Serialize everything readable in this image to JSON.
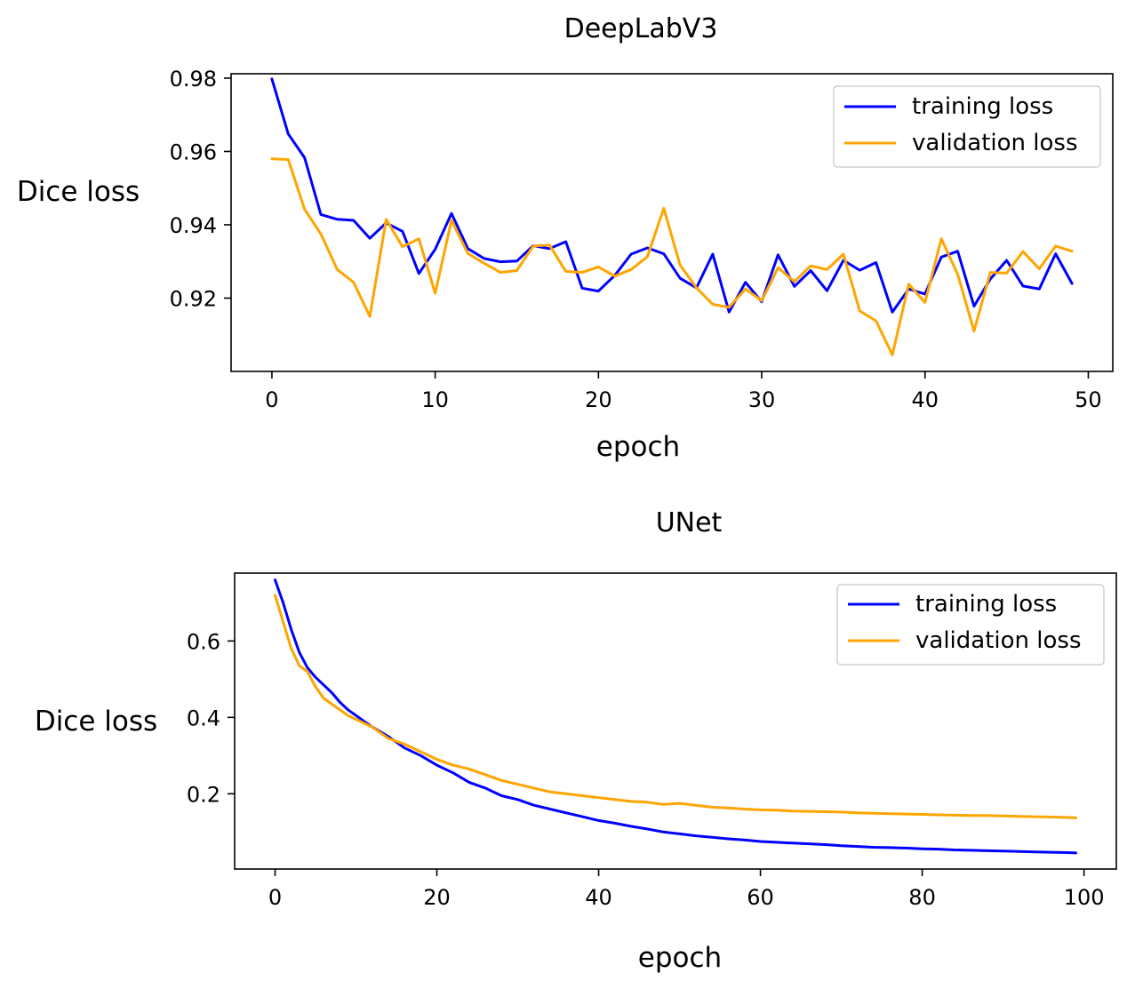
{
  "chart_data": [
    {
      "type": "line",
      "title": "DeepLabV3",
      "xlabel": "epoch",
      "ylabel": "Dice loss",
      "xlim": [
        -2.5,
        51.5
      ],
      "ylim": [
        0.9,
        0.9812
      ],
      "xticks": [
        0,
        10,
        20,
        30,
        40,
        50
      ],
      "yticks": [
        0.92,
        0.94,
        0.96,
        0.98
      ],
      "ytick_labels": [
        "0.92",
        "0.94",
        "0.96",
        "0.98"
      ],
      "grid": false,
      "legend_position": "top-right",
      "series": [
        {
          "name": "training loss",
          "color": "#0000ff",
          "x": [
            0,
            1,
            2,
            3,
            4,
            5,
            6,
            7,
            8,
            9,
            10,
            11,
            12,
            13,
            14,
            15,
            16,
            17,
            18,
            19,
            20,
            21,
            22,
            23,
            24,
            25,
            26,
            27,
            28,
            29,
            30,
            31,
            32,
            33,
            34,
            35,
            36,
            37,
            38,
            39,
            40,
            41,
            42,
            43,
            44,
            45,
            46,
            47,
            48,
            49
          ],
          "values": [
            0.9798,
            0.9648,
            0.9583,
            0.9428,
            0.9415,
            0.9412,
            0.9363,
            0.9405,
            0.9382,
            0.9267,
            0.9333,
            0.9431,
            0.9335,
            0.9308,
            0.9299,
            0.9301,
            0.9343,
            0.9335,
            0.9354,
            0.9227,
            0.9219,
            0.9262,
            0.932,
            0.9337,
            0.9321,
            0.9254,
            0.9228,
            0.932,
            0.9162,
            0.9243,
            0.919,
            0.9318,
            0.9232,
            0.9275,
            0.922,
            0.9303,
            0.9276,
            0.9297,
            0.9162,
            0.9225,
            0.9211,
            0.9312,
            0.9328,
            0.9178,
            0.9252,
            0.9303,
            0.9233,
            0.9225,
            0.9321,
            0.924
          ]
        },
        {
          "name": "validation loss",
          "color": "#ffa500",
          "x": [
            0,
            1,
            2,
            3,
            4,
            5,
            6,
            7,
            8,
            9,
            10,
            11,
            12,
            13,
            14,
            15,
            16,
            17,
            18,
            19,
            20,
            21,
            22,
            23,
            24,
            25,
            26,
            27,
            28,
            29,
            30,
            31,
            32,
            33,
            34,
            35,
            36,
            37,
            38,
            39,
            40,
            41,
            42,
            43,
            44,
            45,
            46,
            47,
            48,
            49
          ],
          "values": [
            0.958,
            0.9578,
            0.9442,
            0.9375,
            0.9278,
            0.9243,
            0.915,
            0.9415,
            0.934,
            0.9362,
            0.9213,
            0.9412,
            0.9322,
            0.9295,
            0.927,
            0.9275,
            0.9342,
            0.9345,
            0.9273,
            0.927,
            0.9285,
            0.926,
            0.9278,
            0.9313,
            0.9445,
            0.929,
            0.9228,
            0.9183,
            0.9175,
            0.9225,
            0.9193,
            0.9283,
            0.9245,
            0.9288,
            0.9278,
            0.932,
            0.9165,
            0.9138,
            0.9045,
            0.9238,
            0.9188,
            0.9362,
            0.9265,
            0.911,
            0.927,
            0.9268,
            0.9327,
            0.928,
            0.9342,
            0.9328
          ]
        }
      ]
    },
    {
      "type": "line",
      "title": "UNet",
      "xlabel": "epoch",
      "ylabel": "Dice loss",
      "xlim": [
        -5,
        104
      ],
      "ylim": [
        0.003,
        0.7776
      ],
      "xticks": [
        0,
        20,
        40,
        60,
        80,
        100
      ],
      "yticks": [
        0.2,
        0.4,
        0.6
      ],
      "ytick_labels": [
        "0.2",
        "0.4",
        "0.6"
      ],
      "grid": false,
      "legend_position": "top-right",
      "series": [
        {
          "name": "training loss",
          "color": "#0000ff",
          "x": [
            0,
            1,
            2,
            3,
            4,
            5,
            6,
            7,
            8,
            9,
            10,
            12,
            14,
            16,
            18,
            20,
            22,
            24,
            26,
            28,
            30,
            32,
            34,
            36,
            38,
            40,
            42,
            44,
            46,
            48,
            50,
            52,
            54,
            56,
            58,
            60,
            62,
            64,
            66,
            68,
            70,
            72,
            74,
            76,
            78,
            80,
            82,
            84,
            86,
            88,
            90,
            92,
            94,
            96,
            98,
            99
          ],
          "values": [
            0.76,
            0.7,
            0.63,
            0.57,
            0.53,
            0.505,
            0.485,
            0.465,
            0.44,
            0.42,
            0.405,
            0.375,
            0.35,
            0.32,
            0.3,
            0.275,
            0.255,
            0.23,
            0.215,
            0.195,
            0.185,
            0.17,
            0.16,
            0.15,
            0.14,
            0.13,
            0.123,
            0.115,
            0.108,
            0.1,
            0.095,
            0.09,
            0.086,
            0.082,
            0.079,
            0.075,
            0.073,
            0.071,
            0.069,
            0.067,
            0.064,
            0.062,
            0.06,
            0.059,
            0.058,
            0.056,
            0.055,
            0.053,
            0.052,
            0.051,
            0.05,
            0.049,
            0.048,
            0.047,
            0.046,
            0.045
          ]
        },
        {
          "name": "validation loss",
          "color": "#ffa500",
          "x": [
            0,
            1,
            2,
            3,
            4,
            5,
            6,
            7,
            8,
            9,
            10,
            12,
            14,
            16,
            18,
            20,
            22,
            24,
            26,
            28,
            30,
            32,
            34,
            36,
            38,
            40,
            42,
            44,
            46,
            48,
            50,
            52,
            54,
            56,
            58,
            60,
            62,
            64,
            66,
            68,
            70,
            72,
            74,
            76,
            78,
            80,
            82,
            84,
            86,
            88,
            90,
            92,
            94,
            96,
            98,
            99
          ],
          "values": [
            0.72,
            0.65,
            0.58,
            0.535,
            0.52,
            0.48,
            0.45,
            0.435,
            0.42,
            0.405,
            0.395,
            0.375,
            0.345,
            0.33,
            0.31,
            0.29,
            0.275,
            0.265,
            0.25,
            0.235,
            0.225,
            0.215,
            0.205,
            0.2,
            0.195,
            0.19,
            0.185,
            0.18,
            0.178,
            0.172,
            0.175,
            0.17,
            0.165,
            0.163,
            0.16,
            0.158,
            0.157,
            0.155,
            0.154,
            0.153,
            0.152,
            0.15,
            0.149,
            0.148,
            0.147,
            0.146,
            0.145,
            0.144,
            0.143,
            0.143,
            0.142,
            0.141,
            0.14,
            0.139,
            0.138,
            0.137
          ]
        }
      ]
    }
  ]
}
